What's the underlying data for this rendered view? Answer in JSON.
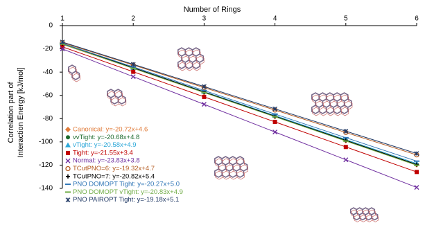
{
  "chart_data": {
    "type": "line",
    "title": "Number of Rings",
    "ylabel": [
      "Correlation part of",
      "Interaction Energy  [kJ/mol]"
    ],
    "x": [
      1,
      2,
      3,
      4,
      5,
      6
    ],
    "xlim": [
      1,
      6
    ],
    "xticks": [
      1,
      2,
      3,
      4,
      5,
      6
    ],
    "ylim": [
      -140,
      0
    ],
    "yticks": [
      0,
      -20,
      -40,
      -60,
      -80,
      -100,
      -120,
      -140
    ],
    "x_axis_position": "top",
    "series": [
      {
        "name": "Canonical: y=-20.72x+4.6",
        "color": "#e07b39",
        "marker": "diamond",
        "values": [
          -16.1,
          -36.8,
          -57.6,
          -78.3,
          -99.0,
          -119.7
        ]
      },
      {
        "name": "vvTight: y=-20.68x+4.8",
        "color": "#1e6b2e",
        "marker": "circle",
        "values": [
          -15.9,
          -36.6,
          -57.2,
          -77.9,
          -98.6,
          -119.3
        ]
      },
      {
        "name": "vTight: y=-20.58x+4.9",
        "color": "#2aa7d8",
        "marker": "triangle",
        "values": [
          -15.7,
          -36.3,
          -56.8,
          -77.4,
          -98.0,
          -118.6
        ]
      },
      {
        "name": "Tight: y=-21.55x+3.4",
        "color": "#c00000",
        "marker": "square",
        "values": [
          -18.2,
          -39.7,
          -61.3,
          -82.8,
          -104.4,
          -125.9
        ]
      },
      {
        "name": "Normal: y=-23.83x+3.8",
        "color": "#7030a0",
        "marker": "x",
        "values": [
          -20.0,
          -43.9,
          -67.7,
          -91.5,
          -115.4,
          -139.2
        ]
      },
      {
        "name": "TCutPNO=6: y=-19.32x+4.7",
        "color": "#b35a1f",
        "marker": "open-circle",
        "values": [
          -14.6,
          -33.9,
          -53.3,
          -72.6,
          -91.9,
          -111.2
        ]
      },
      {
        "name": "TCutPNO=7: y=-20.82x+5.4",
        "color": "#000000",
        "marker": "plus",
        "values": [
          -15.4,
          -36.2,
          -57.1,
          -77.9,
          -98.7,
          -119.5
        ]
      },
      {
        "name": "PNO DOMOPT Tight: y=-20.27x+5.0",
        "color": "#2e75b6",
        "marker": "dash",
        "values": [
          -15.3,
          -35.5,
          -55.8,
          -76.1,
          -96.4,
          -116.6
        ]
      },
      {
        "name": "PNO DOMOPT vTight: y=-20.83x+4.9",
        "color": "#70ad47",
        "marker": "dash",
        "values": [
          -15.9,
          -36.8,
          -57.6,
          -78.4,
          -99.3,
          -120.1
        ]
      },
      {
        "name": "PNO PAIROPT Tight: y=-19.18x+5.1",
        "color": "#1f3864",
        "marker": "star",
        "values": [
          -14.1,
          -33.3,
          -52.4,
          -71.6,
          -90.8,
          -110.0
        ]
      }
    ]
  }
}
